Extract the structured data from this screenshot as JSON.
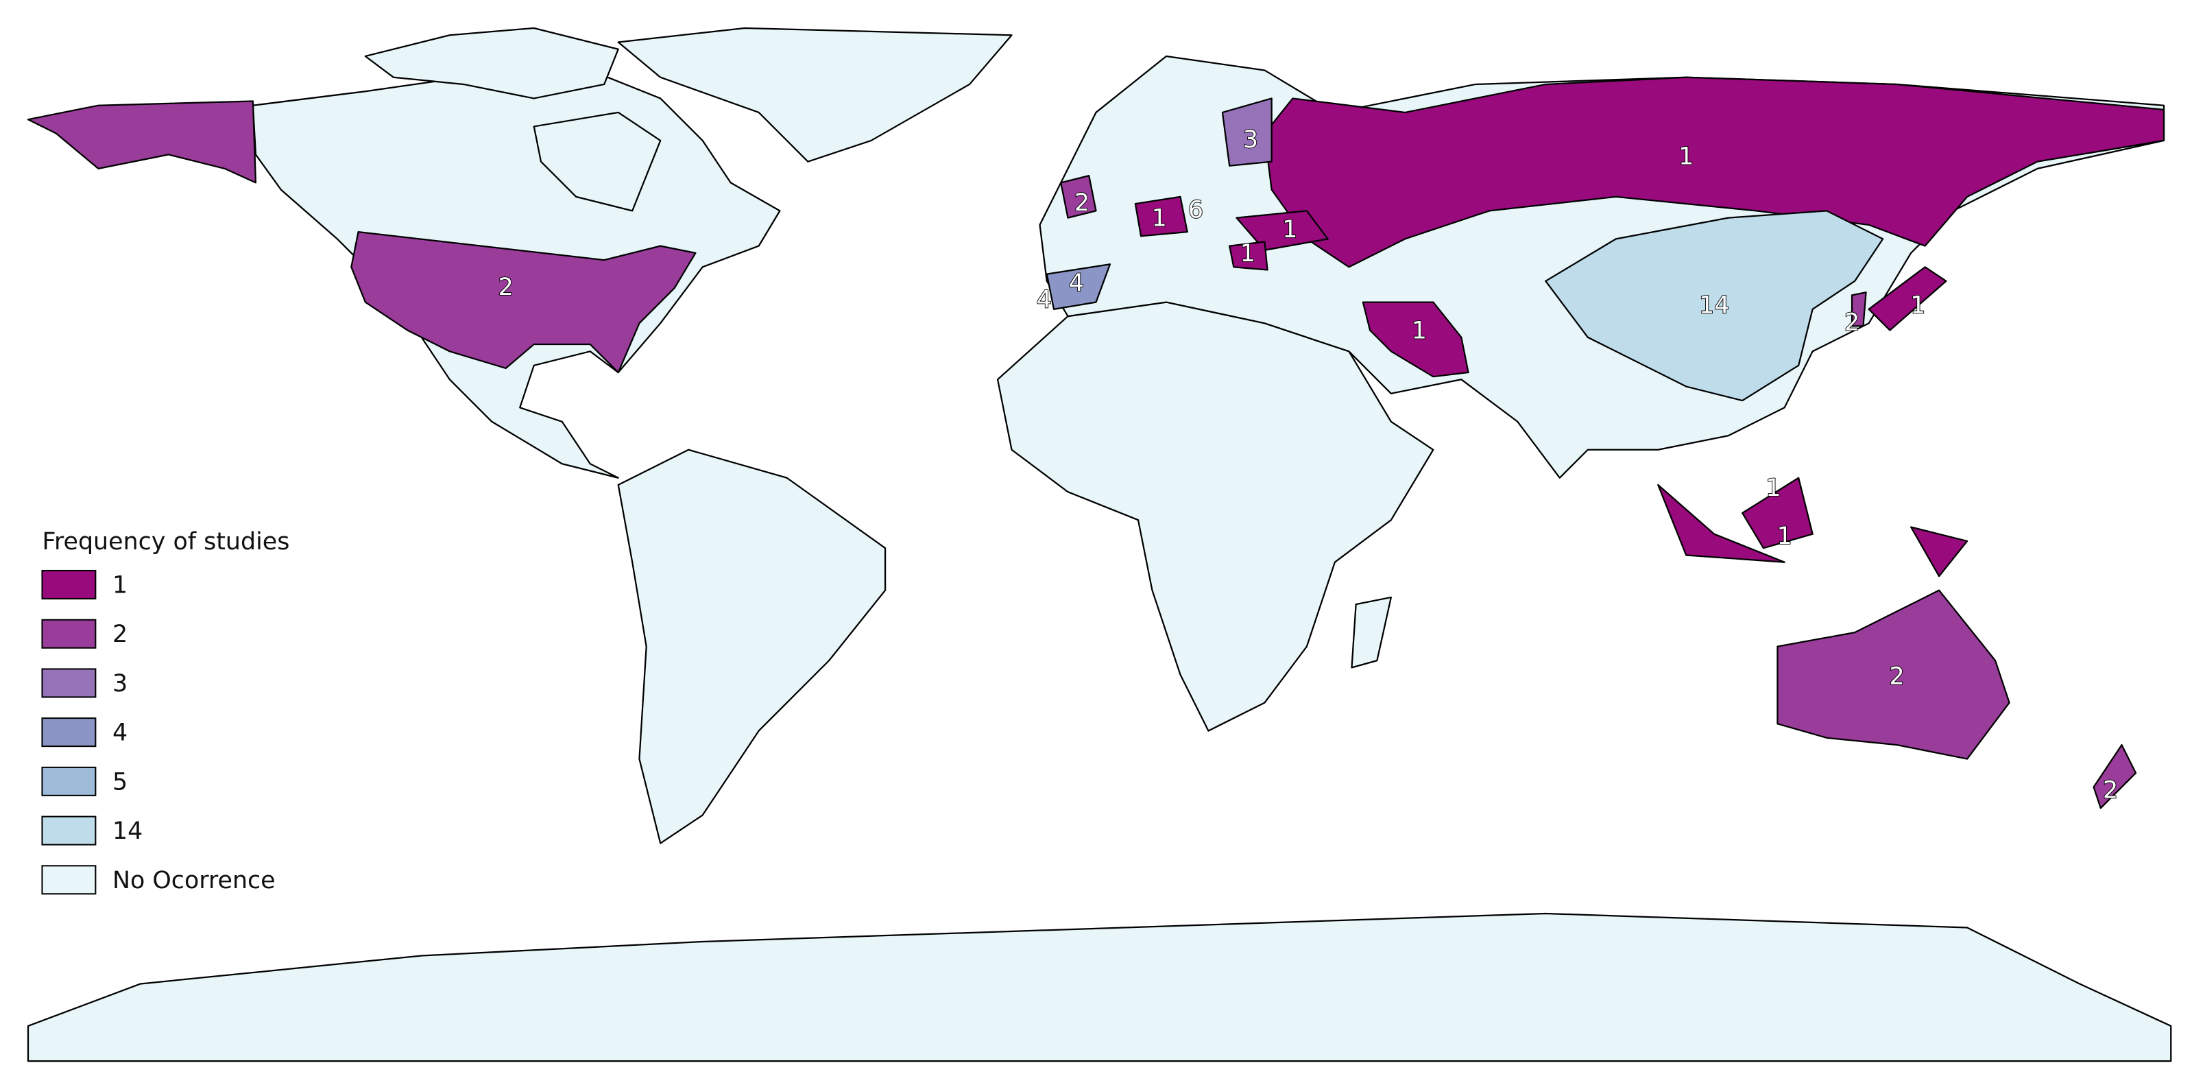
{
  "legend": {
    "title": "Frequency of studies",
    "items": [
      {
        "label": 1,
        "color": "#990a7c"
      },
      {
        "label": 2,
        "color": "#9a3d9a"
      },
      {
        "label": 3,
        "color": "#9673b9"
      },
      {
        "label": 4,
        "color": "#8c96c6"
      },
      {
        "label": 5,
        "color": "#9ebcda"
      },
      {
        "label": 14,
        "color": "#bfdcea"
      },
      {
        "label": "No Ocorrence",
        "color": "#e8f6f9"
      }
    ]
  },
  "map_labels": [
    2,
    3,
    2,
    1,
    6,
    1,
    1,
    4,
    4,
    1,
    14,
    1,
    2,
    1,
    1,
    1,
    2,
    2
  ]
}
